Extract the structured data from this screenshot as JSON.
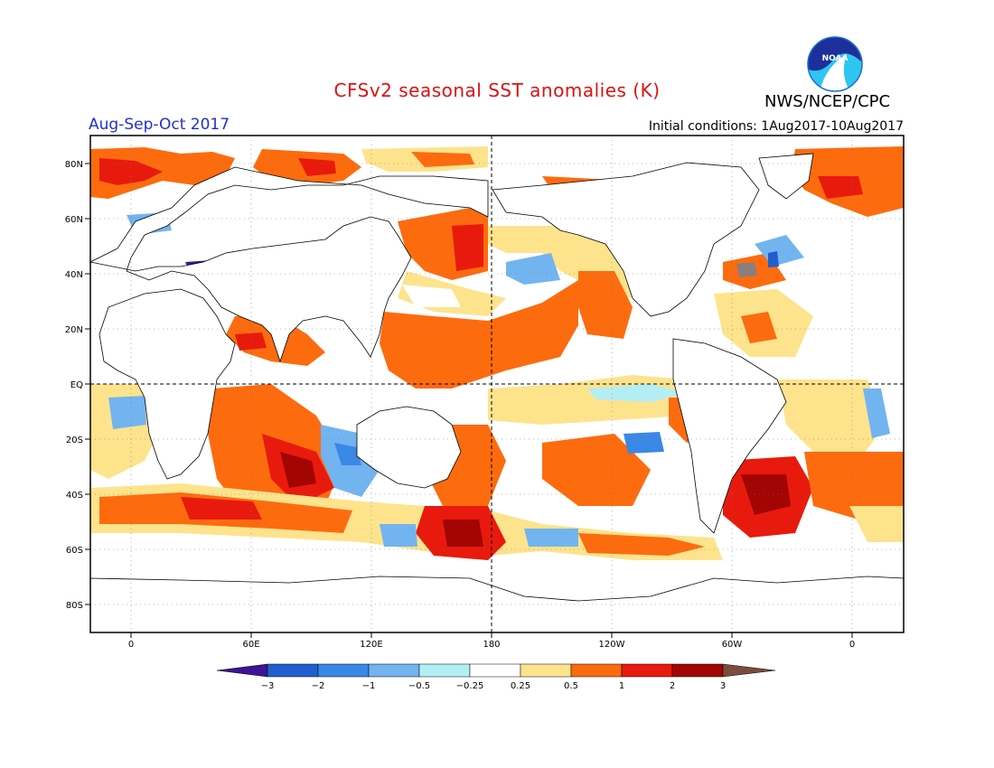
{
  "header": {
    "title": "CFSv2 seasonal SST anomalies (K)",
    "season": "Aug-Sep-Oct 2017",
    "initial_conditions": "Initial conditions: 1Aug2017-10Aug2017",
    "agency": "NWS/NCEP/CPC",
    "logo_text": "NOAA"
  },
  "map": {
    "projection": "cylindrical",
    "lat_labels": [
      "80N",
      "60N",
      "40N",
      "20N",
      "EQ",
      "20S",
      "40S",
      "60S",
      "80S"
    ],
    "lon_labels": [
      "0",
      "60E",
      "120E",
      "180",
      "120W",
      "60W",
      "0"
    ]
  },
  "colorbar": {
    "labels": [
      "−3",
      "−2",
      "−1",
      "−0.5",
      "−0.25",
      "0.25",
      "0.5",
      "1",
      "2",
      "3"
    ],
    "colors": [
      "#3c1495",
      "#1f5fcd",
      "#3a88e6",
      "#72b4f0",
      "#b3eef5",
      "#ffffff",
      "#fee38d",
      "#fd6b0f",
      "#e81a0d",
      "#a30505",
      "#7a4d3d"
    ]
  },
  "colors": {
    "grey_anom": "#8a7e7e"
  }
}
